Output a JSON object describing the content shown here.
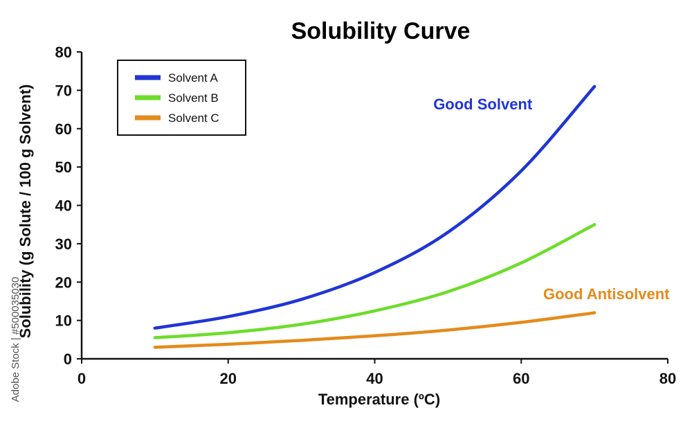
{
  "chart_data": {
    "type": "line",
    "title": "Solubility Curve",
    "xlabel": "Temperature (ºC)",
    "ylabel": "Solubility (g Solute / 100 g Solvent)",
    "xlim": [
      0,
      80
    ],
    "ylim": [
      0,
      80
    ],
    "xticks": [
      0,
      20,
      40,
      60,
      80
    ],
    "yticks": [
      0,
      10,
      20,
      30,
      40,
      50,
      60,
      70,
      80
    ],
    "grid": false,
    "legend_position": "top-left",
    "x": [
      10,
      20,
      30,
      40,
      50,
      60,
      70
    ],
    "series": [
      {
        "name": "Solvent A",
        "color": "#1f35d6",
        "values": [
          8,
          11,
          15.5,
          22.5,
          33,
          49,
          71
        ]
      },
      {
        "name": "Solvent B",
        "color": "#6ddd2a",
        "values": [
          5.5,
          6.8,
          9,
          12.5,
          17.5,
          25,
          35
        ]
      },
      {
        "name": "Solvent C",
        "color": "#e58a1c",
        "values": [
          3,
          3.8,
          4.8,
          6,
          7.5,
          9.5,
          12
        ]
      }
    ],
    "annotations": [
      {
        "text": "Good Solvent",
        "color": "#1f35d6",
        "x": 48,
        "y": 65
      },
      {
        "text": "Good Antisolvent",
        "color": "#e58a1c",
        "x": 63,
        "y": 15.5
      }
    ]
  },
  "watermark": {
    "text": "Adobe Stock | #500035030"
  }
}
